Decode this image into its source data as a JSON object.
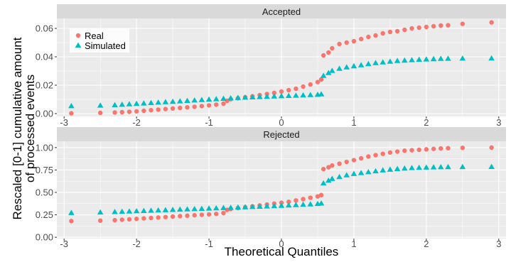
{
  "chart_data": {
    "type": "scatter",
    "title": "",
    "xlabel": "Theoretical Quantiles",
    "ylabel": "Rescaled [0-1] cumulative amount of processed events",
    "ylabel_lines": [
      "Rescaled [0-1] cumulative amount",
      "of processed events"
    ],
    "grid": true,
    "legend_placement": "top-left inside first panel",
    "xlim": [
      -3.1,
      3.1
    ],
    "x_ticks": [
      -3,
      -2,
      -1,
      0,
      1,
      2,
      3
    ],
    "x_tick_labels": [
      "-3",
      "-2",
      "-1",
      "0",
      "1",
      "2",
      "3"
    ],
    "colors": {
      "Real": "#F8766D",
      "Simulated": "#00BFC4",
      "panel": "#EBEBEB",
      "strip": "#D9D9D9",
      "grid": "#FFFFFF"
    },
    "legend": [
      {
        "name": "Real",
        "marker": "circle"
      },
      {
        "name": "Simulated",
        "marker": "triangle"
      }
    ],
    "panels": [
      {
        "strip": "Accepted",
        "ylim": [
          -0.002,
          0.067
        ],
        "y_ticks": [
          0.0,
          0.02,
          0.04,
          0.06
        ],
        "y_tick_labels": [
          "0.00",
          "0.02",
          "0.04",
          "0.06"
        ],
        "series": [
          {
            "name": "Real",
            "x": [
              -2.9,
              -2.5,
              -2.3,
              -2.2,
              -2.1,
              -2.0,
              -1.9,
              -1.8,
              -1.7,
              -1.6,
              -1.5,
              -1.4,
              -1.3,
              -1.2,
              -1.1,
              -1.0,
              -0.9,
              -0.8,
              -0.75,
              -0.7,
              -0.6,
              -0.5,
              -0.4,
              -0.3,
              -0.2,
              -0.1,
              0.0,
              0.1,
              0.2,
              0.3,
              0.4,
              0.5,
              0.55,
              0.58,
              0.65,
              0.7,
              0.8,
              0.9,
              1.0,
              1.1,
              1.2,
              1.3,
              1.4,
              1.5,
              1.6,
              1.7,
              1.8,
              1.9,
              2.0,
              2.1,
              2.2,
              2.3,
              2.5,
              2.9
            ],
            "y": [
              0.0002,
              0.0005,
              0.0008,
              0.001,
              0.0013,
              0.0016,
              0.002,
              0.0024,
              0.0028,
              0.0032,
              0.0036,
              0.004,
              0.0044,
              0.0048,
              0.0053,
              0.0058,
              0.0063,
              0.007,
              0.009,
              0.0102,
              0.0108,
              0.0115,
              0.0122,
              0.013,
              0.0138,
              0.0146,
              0.0155,
              0.0165,
              0.0175,
              0.019,
              0.0205,
              0.0222,
              0.024,
              0.041,
              0.043,
              0.046,
              0.049,
              0.05,
              0.051,
              0.0525,
              0.054,
              0.055,
              0.0565,
              0.0575,
              0.058,
              0.059,
              0.06,
              0.0605,
              0.061,
              0.0615,
              0.062,
              0.0622,
              0.0632,
              0.0642
            ]
          },
          {
            "name": "Simulated",
            "x": [
              -2.9,
              -2.5,
              -2.3,
              -2.2,
              -2.1,
              -2.0,
              -1.9,
              -1.8,
              -1.7,
              -1.6,
              -1.5,
              -1.4,
              -1.3,
              -1.2,
              -1.1,
              -1.0,
              -0.9,
              -0.8,
              -0.7,
              -0.6,
              -0.5,
              -0.4,
              -0.3,
              -0.2,
              -0.1,
              0.0,
              0.1,
              0.2,
              0.3,
              0.4,
              0.5,
              0.55,
              0.58,
              0.65,
              0.7,
              0.8,
              0.9,
              1.0,
              1.1,
              1.2,
              1.3,
              1.4,
              1.5,
              1.6,
              1.7,
              1.8,
              1.9,
              2.0,
              2.1,
              2.2,
              2.3,
              2.5,
              2.9
            ],
            "y": [
              0.0052,
              0.0056,
              0.0059,
              0.0062,
              0.0065,
              0.0068,
              0.0071,
              0.0074,
              0.0077,
              0.008,
              0.0083,
              0.0086,
              0.0089,
              0.0092,
              0.0095,
              0.0098,
              0.0101,
              0.0104,
              0.0107,
              0.011,
              0.0112,
              0.0114,
              0.0116,
              0.0118,
              0.012,
              0.0122,
              0.0124,
              0.0126,
              0.0128,
              0.013,
              0.0132,
              0.0135,
              0.0265,
              0.0285,
              0.03,
              0.0315,
              0.0325,
              0.0333,
              0.034,
              0.0348,
              0.0355,
              0.036,
              0.0365,
              0.037,
              0.0373,
              0.0376,
              0.0379,
              0.0381,
              0.0383,
              0.0385,
              0.0386,
              0.0387,
              0.0388
            ]
          }
        ]
      },
      {
        "strip": "Rejected",
        "ylim": [
          -0.015,
          1.07
        ],
        "y_ticks": [
          0.0,
          0.25,
          0.5,
          0.75,
          1.0
        ],
        "y_tick_labels": [
          "0.00",
          "0.25",
          "0.50",
          "0.75",
          "1.00"
        ],
        "series": [
          {
            "name": "Real",
            "x": [
              -2.9,
              -2.5,
              -2.3,
              -2.2,
              -2.1,
              -2.0,
              -1.9,
              -1.8,
              -1.7,
              -1.6,
              -1.5,
              -1.4,
              -1.3,
              -1.2,
              -1.1,
              -1.0,
              -0.9,
              -0.8,
              -0.75,
              -0.7,
              -0.6,
              -0.5,
              -0.4,
              -0.3,
              -0.2,
              -0.1,
              0.0,
              0.1,
              0.2,
              0.3,
              0.4,
              0.5,
              0.55,
              0.58,
              0.65,
              0.7,
              0.8,
              0.9,
              1.0,
              1.1,
              1.2,
              1.3,
              1.4,
              1.5,
              1.6,
              1.7,
              1.8,
              1.9,
              2.0,
              2.1,
              2.2,
              2.3,
              2.5,
              2.9
            ],
            "y": [
              0.18,
              0.185,
              0.19,
              0.195,
              0.2,
              0.205,
              0.21,
              0.215,
              0.22,
              0.225,
              0.23,
              0.235,
              0.24,
              0.245,
              0.25,
              0.255,
              0.26,
              0.27,
              0.305,
              0.315,
              0.325,
              0.335,
              0.345,
              0.355,
              0.365,
              0.375,
              0.385,
              0.395,
              0.41,
              0.425,
              0.44,
              0.455,
              0.47,
              0.76,
              0.78,
              0.8,
              0.82,
              0.84,
              0.86,
              0.88,
              0.9,
              0.915,
              0.93,
              0.945,
              0.955,
              0.965,
              0.97,
              0.975,
              0.98,
              0.985,
              0.99,
              0.993,
              0.997,
              1.0
            ]
          },
          {
            "name": "Simulated",
            "x": [
              -2.9,
              -2.5,
              -2.3,
              -2.2,
              -2.1,
              -2.0,
              -1.9,
              -1.8,
              -1.7,
              -1.6,
              -1.5,
              -1.4,
              -1.3,
              -1.2,
              -1.1,
              -1.0,
              -0.9,
              -0.8,
              -0.7,
              -0.6,
              -0.5,
              -0.4,
              -0.3,
              -0.2,
              -0.1,
              0.0,
              0.1,
              0.2,
              0.3,
              0.4,
              0.5,
              0.55,
              0.58,
              0.65,
              0.7,
              0.8,
              0.9,
              1.0,
              1.1,
              1.2,
              1.3,
              1.4,
              1.5,
              1.6,
              1.7,
              1.8,
              1.9,
              2.0,
              2.1,
              2.2,
              2.3,
              2.5,
              2.9
            ],
            "y": [
              0.27,
              0.275,
              0.28,
              0.283,
              0.286,
              0.289,
              0.292,
              0.295,
              0.298,
              0.301,
              0.304,
              0.307,
              0.31,
              0.313,
              0.316,
              0.319,
              0.322,
              0.325,
              0.328,
              0.331,
              0.334,
              0.337,
              0.34,
              0.343,
              0.346,
              0.35,
              0.354,
              0.358,
              0.362,
              0.366,
              0.37,
              0.375,
              0.6,
              0.63,
              0.65,
              0.67,
              0.69,
              0.705,
              0.715,
              0.725,
              0.735,
              0.745,
              0.753,
              0.76,
              0.765,
              0.77,
              0.773,
              0.776,
              0.778,
              0.78,
              0.781,
              0.782,
              0.783
            ]
          }
        ]
      }
    ]
  }
}
